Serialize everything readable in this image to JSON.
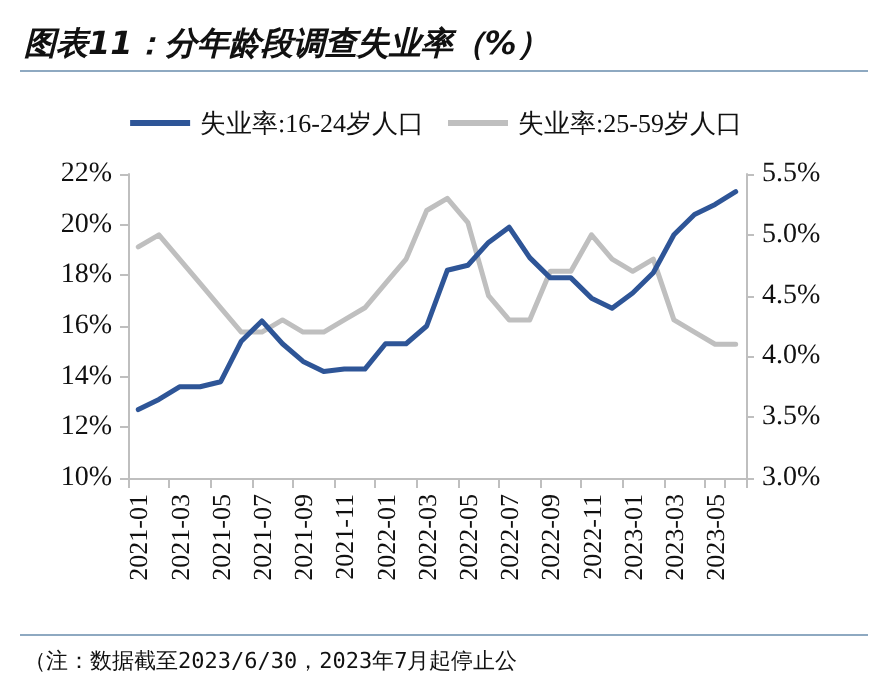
{
  "chart_data": {
    "type": "line",
    "title": "图表11：分年龄段调查失业率（%）",
    "categories": [
      "2021-01",
      null,
      "2021-03",
      null,
      "2021-05",
      null,
      "2021-07",
      null,
      "2021-09",
      null,
      "2021-11",
      null,
      "2022-01",
      null,
      "2022-03",
      null,
      "2022-05",
      null,
      "2022-07",
      null,
      "2022-09",
      null,
      "2022-11",
      null,
      "2023-01",
      null,
      "2023-03",
      null,
      "2023-05",
      null
    ],
    "series": [
      {
        "name": "失业率:16-24岁人口",
        "color": "#2e5597",
        "values": [
          12.7,
          13.1,
          13.6,
          13.6,
          13.8,
          15.4,
          16.2,
          15.3,
          14.6,
          14.2,
          14.3,
          14.3,
          15.3,
          15.3,
          16.0,
          18.2,
          18.4,
          19.3,
          19.9,
          18.7,
          17.9,
          17.9,
          17.1,
          16.7,
          17.3,
          18.1,
          19.6,
          20.4,
          20.8,
          21.3
        ]
      },
      {
        "name": "失业率:25-59岁人口",
        "color": "#bfbfbf",
        "axis": "y2",
        "values": [
          4.9,
          5.0,
          4.8,
          4.6,
          4.4,
          4.2,
          4.2,
          4.3,
          4.2,
          4.2,
          4.3,
          4.4,
          4.6,
          4.8,
          5.2,
          5.3,
          5.1,
          4.5,
          4.3,
          4.3,
          4.7,
          4.7,
          5.0,
          4.8,
          4.7,
          4.8,
          4.3,
          4.2,
          4.1,
          4.1
        ]
      }
    ],
    "ylim": [
      10,
      22
    ],
    "yticks": [
      {
        "value": 10,
        "label": "10%"
      },
      {
        "value": 12,
        "label": "12%"
      },
      {
        "value": 14,
        "label": "14%"
      },
      {
        "value": 16,
        "label": "16%"
      },
      {
        "value": 18,
        "label": "18%"
      },
      {
        "value": 20,
        "label": "20%"
      },
      {
        "value": 22,
        "label": "22%"
      }
    ],
    "y2lim": [
      3.0,
      5.5
    ],
    "y2ticks": [
      {
        "value": 3.0,
        "label": "3.0%"
      },
      {
        "value": 3.5,
        "label": "3.5%"
      },
      {
        "value": 4.0,
        "label": "4.0%"
      },
      {
        "value": 4.5,
        "label": "4.5%"
      },
      {
        "value": 5.0,
        "label": "5.0%"
      },
      {
        "value": 5.5,
        "label": "5.5%"
      }
    ],
    "legend": "top",
    "grid": false,
    "marker": "none",
    "line_style": "solid",
    "annotations": [
      "（注：数据截至2023/6/30，2023年7月起停止公"
    ]
  }
}
